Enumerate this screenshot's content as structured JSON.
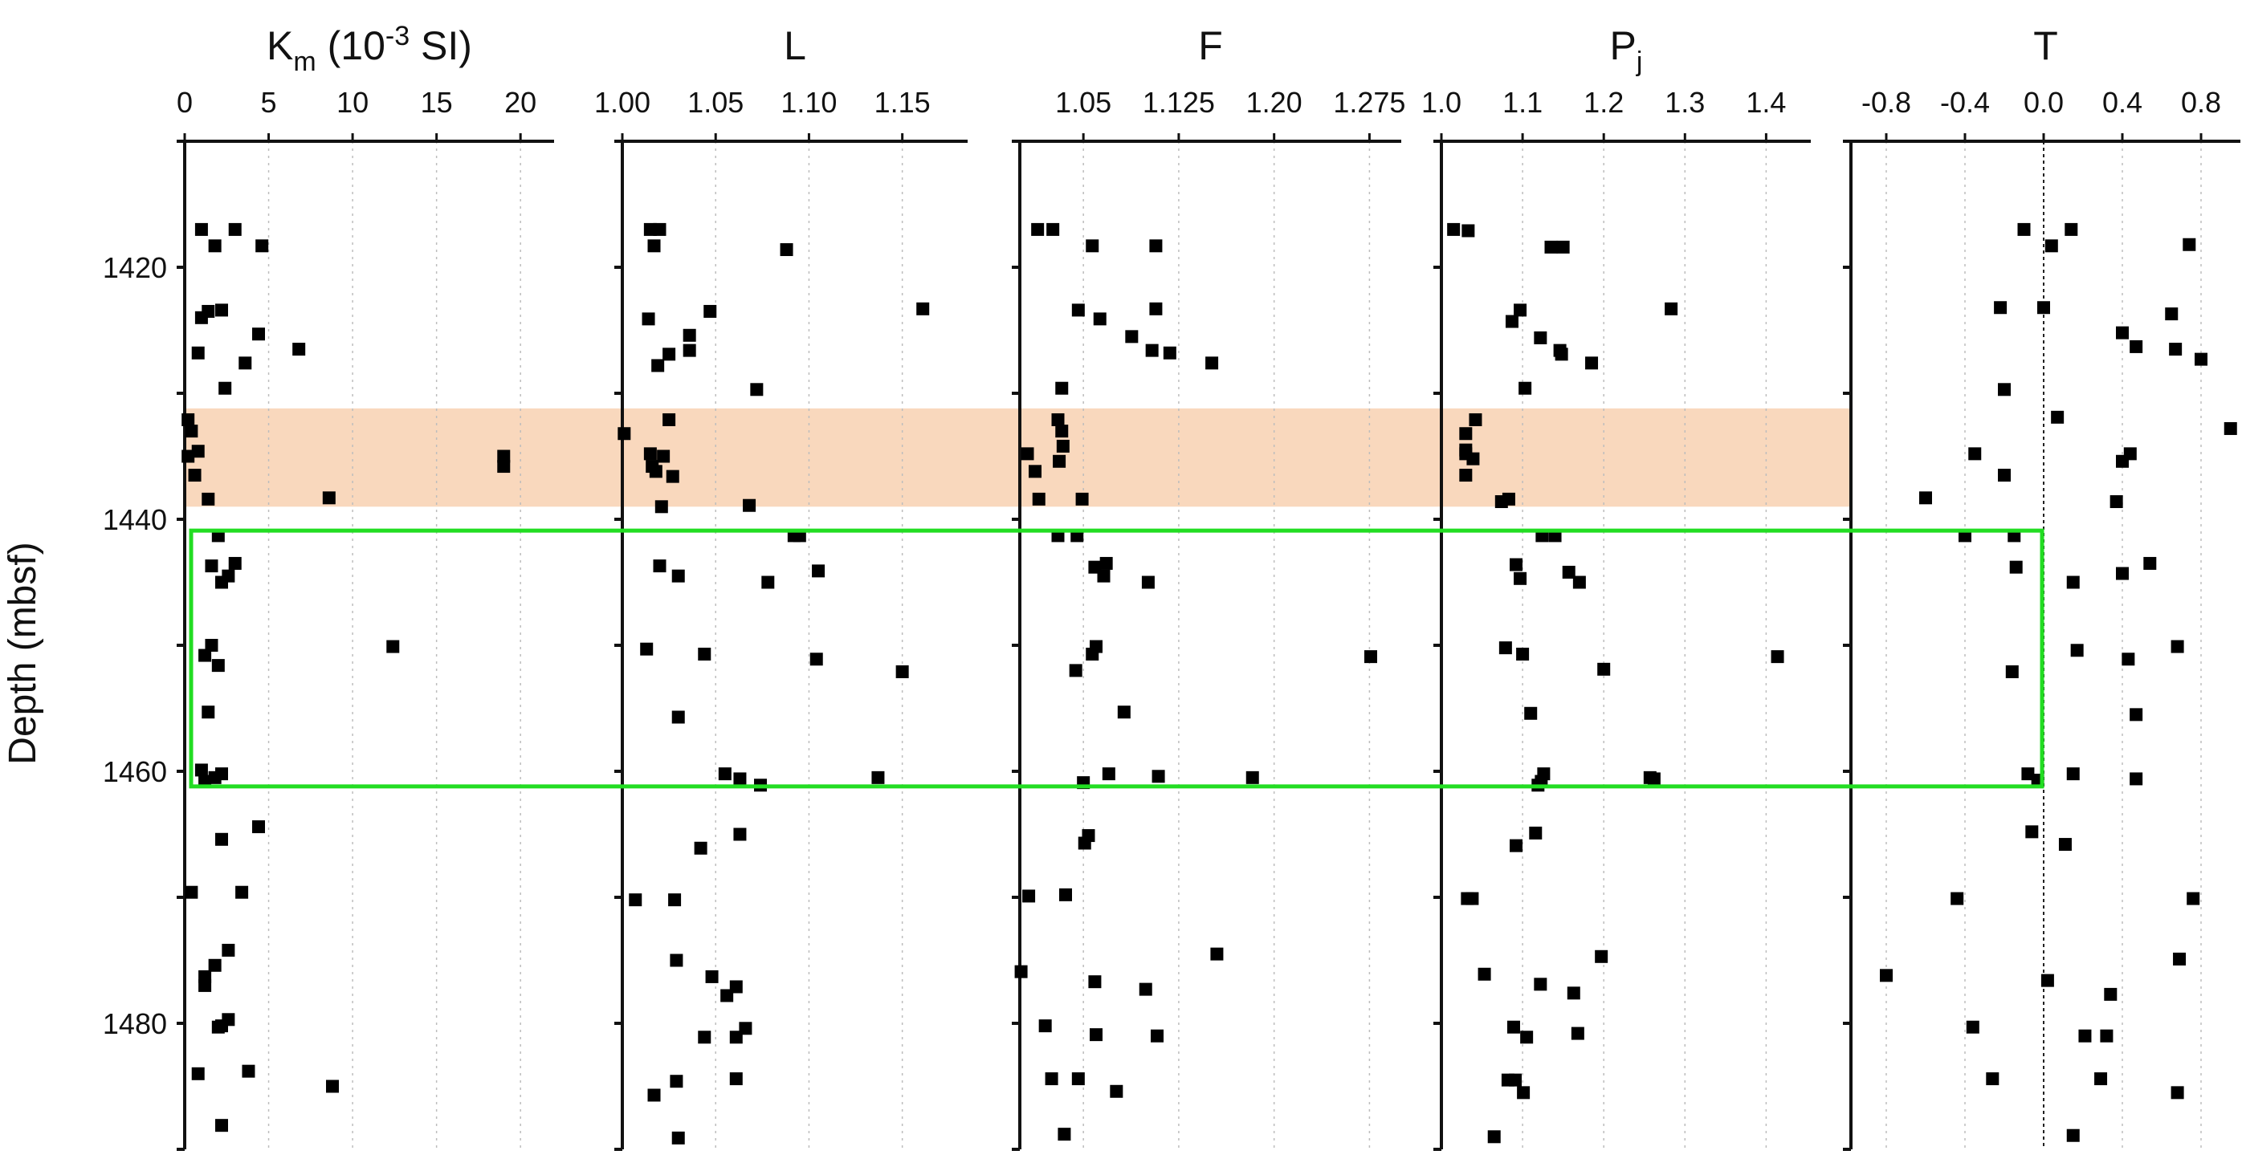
{
  "chart_data": {
    "type": "scatter",
    "y_axis": {
      "label": "Depth (mbsf)",
      "range": [
        1410,
        1490
      ],
      "inverted": true,
      "ticks": [
        1420,
        1440,
        1460,
        1480
      ]
    },
    "highlight_band": {
      "depth_range": [
        1431.2,
        1439.0
      ],
      "color": "#f9d8bd"
    },
    "highlight_box": {
      "depth_range": [
        1440.9,
        1461.2
      ],
      "color": "#22dd22"
    },
    "marker_color": "#000000",
    "panels": [
      {
        "title_main": "K",
        "title_sub": "m",
        "title_rest": " (10",
        "title_sup": "-3",
        "title_end": " SI)",
        "xlim": [
          0,
          22
        ],
        "ticks": [
          0,
          5,
          10,
          15,
          20
        ],
        "tick_labels": [
          "0",
          "5",
          "10",
          "15",
          "20"
        ],
        "gridlines": [
          0,
          5,
          10,
          15,
          20
        ],
        "points": [
          [
            1,
            1417
          ],
          [
            3,
            1417
          ],
          [
            1.8,
            1418.3
          ],
          [
            4.6,
            1418.3
          ],
          [
            1,
            1424
          ],
          [
            2.2,
            1423.4
          ],
          [
            1.4,
            1423.5
          ],
          [
            4.4,
            1425.3
          ],
          [
            6.8,
            1426.5
          ],
          [
            0.8,
            1426.8
          ],
          [
            3.6,
            1427.6
          ],
          [
            2.4,
            1429.6
          ],
          [
            0.2,
            1432.1
          ],
          [
            0.4,
            1433
          ],
          [
            0.8,
            1434.6
          ],
          [
            0.2,
            1435
          ],
          [
            19,
            1435
          ],
          [
            19,
            1435.8
          ],
          [
            0.6,
            1436.5
          ],
          [
            1.4,
            1438.4
          ],
          [
            8.6,
            1438.3
          ],
          [
            2,
            1441.3
          ],
          [
            1.6,
            1443.7
          ],
          [
            3,
            1443.5
          ],
          [
            2.6,
            1444.5
          ],
          [
            2.2,
            1445
          ],
          [
            1.6,
            1450
          ],
          [
            1.2,
            1450.8
          ],
          [
            12.4,
            1450.1
          ],
          [
            2,
            1451.6
          ],
          [
            1.4,
            1455.3
          ],
          [
            1,
            1459.9
          ],
          [
            1.8,
            1460.5
          ],
          [
            2.2,
            1460.2
          ],
          [
            1.2,
            1460.8
          ],
          [
            4.4,
            1464.4
          ],
          [
            2.2,
            1465.4
          ],
          [
            0.4,
            1469.6
          ],
          [
            3.4,
            1469.6
          ],
          [
            2.6,
            1474.2
          ],
          [
            1.8,
            1475.4
          ],
          [
            1.2,
            1476.3
          ],
          [
            1.2,
            1477
          ],
          [
            2.6,
            1479.7
          ],
          [
            2,
            1480.3
          ],
          [
            2.2,
            1480.2
          ],
          [
            0.8,
            1484
          ],
          [
            3.8,
            1483.8
          ],
          [
            8.8,
            1485
          ],
          [
            2.2,
            1488.1
          ]
        ]
      },
      {
        "title_main": "L",
        "xlim": [
          1.0,
          1.185
        ],
        "ticks": [
          1.0,
          1.05,
          1.1,
          1.15
        ],
        "tick_labels": [
          "1.00",
          "1.05",
          "1.10",
          "1.15"
        ],
        "gridlines": [
          1.0,
          1.05,
          1.1,
          1.15
        ],
        "points": [
          [
            1.015,
            1417
          ],
          [
            1.02,
            1417
          ],
          [
            1.017,
            1418.3
          ],
          [
            1.088,
            1418.6
          ],
          [
            1.161,
            1423.3
          ],
          [
            1.047,
            1423.5
          ],
          [
            1.014,
            1424.1
          ],
          [
            1.036,
            1425.4
          ],
          [
            1.036,
            1426.6
          ],
          [
            1.025,
            1426.9
          ],
          [
            1.019,
            1427.8
          ],
          [
            1.072,
            1429.7
          ],
          [
            1.025,
            1432.1
          ],
          [
            1.001,
            1433.2
          ],
          [
            1.015,
            1434.8
          ],
          [
            1.022,
            1435
          ],
          [
            1.016,
            1435.8
          ],
          [
            1.018,
            1436.2
          ],
          [
            1.027,
            1436.6
          ],
          [
            1.021,
            1439
          ],
          [
            1.068,
            1438.9
          ],
          [
            1.092,
            1441.3
          ],
          [
            1.095,
            1441.3
          ],
          [
            1.02,
            1443.7
          ],
          [
            1.03,
            1444.5
          ],
          [
            1.078,
            1445
          ],
          [
            1.105,
            1444.1
          ],
          [
            1.013,
            1450.3
          ],
          [
            1.044,
            1450.7
          ],
          [
            1.104,
            1451.1
          ],
          [
            1.15,
            1452.1
          ],
          [
            1.03,
            1455.7
          ],
          [
            1.055,
            1460.2
          ],
          [
            1.063,
            1460.6
          ],
          [
            1.074,
            1461.1
          ],
          [
            1.137,
            1460.5
          ],
          [
            1.063,
            1465
          ],
          [
            1.042,
            1466.1
          ],
          [
            1.007,
            1470.2
          ],
          [
            1.028,
            1470.2
          ],
          [
            1.029,
            1475
          ],
          [
            1.048,
            1476.3
          ],
          [
            1.061,
            1477.1
          ],
          [
            1.056,
            1477.8
          ],
          [
            1.066,
            1480.4
          ],
          [
            1.044,
            1481.1
          ],
          [
            1.061,
            1481.1
          ],
          [
            1.029,
            1484.6
          ],
          [
            1.061,
            1484.4
          ],
          [
            1.017,
            1485.7
          ],
          [
            1.03,
            1489.1
          ]
        ]
      },
      {
        "title_main": "F",
        "xlim": [
          1.0,
          1.3
        ],
        "ticks": [
          1.05,
          1.125,
          1.2,
          1.275
        ],
        "tick_labels": [
          "1.05",
          "1.125",
          "1.20",
          "1.275"
        ],
        "gridlines": [
          1.05,
          1.125,
          1.2,
          1.275
        ],
        "points": [
          [
            1.014,
            1417
          ],
          [
            1.026,
            1417
          ],
          [
            1.057,
            1418.3
          ],
          [
            1.107,
            1418.3
          ],
          [
            1.046,
            1423.4
          ],
          [
            1.107,
            1423.3
          ],
          [
            1.063,
            1424.1
          ],
          [
            1.088,
            1425.5
          ],
          [
            1.104,
            1426.6
          ],
          [
            1.118,
            1426.8
          ],
          [
            1.151,
            1427.6
          ],
          [
            1.033,
            1429.6
          ],
          [
            1.03,
            1432.1
          ],
          [
            1.033,
            1433
          ],
          [
            1.034,
            1434.2
          ],
          [
            1.006,
            1434.8
          ],
          [
            1.031,
            1435.4
          ],
          [
            1.012,
            1436.2
          ],
          [
            1.015,
            1438.4
          ],
          [
            1.049,
            1438.4
          ],
          [
            1.03,
            1441.3
          ],
          [
            1.045,
            1441.3
          ],
          [
            1.059,
            1443.8
          ],
          [
            1.068,
            1443.5
          ],
          [
            1.066,
            1444.5
          ],
          [
            1.101,
            1445
          ],
          [
            1.06,
            1450.1
          ],
          [
            1.057,
            1450.7
          ],
          [
            1.044,
            1452
          ],
          [
            1.276,
            1450.9
          ],
          [
            1.082,
            1455.3
          ],
          [
            1.07,
            1460.2
          ],
          [
            1.109,
            1460.4
          ],
          [
            1.183,
            1460.5
          ],
          [
            1.05,
            1460.9
          ],
          [
            1.054,
            1465.1
          ],
          [
            1.051,
            1465.7
          ],
          [
            1.007,
            1469.9
          ],
          [
            1.036,
            1469.8
          ],
          [
            1.155,
            1474.5
          ],
          [
            1.059,
            1476.7
          ],
          [
            1.099,
            1477.3
          ],
          [
            1.001,
            1475.9
          ],
          [
            1.02,
            1480.2
          ],
          [
            1.06,
            1480.9
          ],
          [
            1.108,
            1481
          ],
          [
            1.025,
            1484.4
          ],
          [
            1.046,
            1484.4
          ],
          [
            1.076,
            1485.4
          ],
          [
            1.035,
            1488.8
          ]
        ]
      },
      {
        "title_main": "P",
        "title_sub": "j",
        "xlim": [
          1.0,
          1.455
        ],
        "ticks": [
          1.0,
          1.1,
          1.2,
          1.3,
          1.4
        ],
        "tick_labels": [
          "1.0",
          "1.1",
          "1.2",
          "1.3",
          "1.4"
        ],
        "gridlines": [
          1.0,
          1.1,
          1.2,
          1.3,
          1.4
        ],
        "points": [
          [
            1.015,
            1417
          ],
          [
            1.033,
            1417.1
          ],
          [
            1.135,
            1418.4
          ],
          [
            1.15,
            1418.4
          ],
          [
            1.283,
            1423.3
          ],
          [
            1.097,
            1423.4
          ],
          [
            1.087,
            1424.3
          ],
          [
            1.122,
            1425.6
          ],
          [
            1.146,
            1426.6
          ],
          [
            1.148,
            1426.9
          ],
          [
            1.185,
            1427.6
          ],
          [
            1.103,
            1429.6
          ],
          [
            1.042,
            1432.1
          ],
          [
            1.03,
            1433.2
          ],
          [
            1.03,
            1434.5
          ],
          [
            1.03,
            1434.8
          ],
          [
            1.039,
            1435.2
          ],
          [
            1.03,
            1436.5
          ],
          [
            1.074,
            1438.6
          ],
          [
            1.083,
            1438.4
          ],
          [
            1.124,
            1441.3
          ],
          [
            1.14,
            1441.3
          ],
          [
            1.092,
            1443.6
          ],
          [
            1.097,
            1444.7
          ],
          [
            1.157,
            1444.2
          ],
          [
            1.17,
            1445
          ],
          [
            1.079,
            1450.2
          ],
          [
            1.1,
            1450.7
          ],
          [
            1.2,
            1451.9
          ],
          [
            1.414,
            1450.9
          ],
          [
            1.11,
            1455.4
          ],
          [
            1.126,
            1460.2
          ],
          [
            1.257,
            1460.5
          ],
          [
            1.262,
            1460.6
          ],
          [
            1.123,
            1460.8
          ],
          [
            1.119,
            1461.1
          ],
          [
            1.116,
            1464.9
          ],
          [
            1.092,
            1465.9
          ],
          [
            1.038,
            1470.1
          ],
          [
            1.032,
            1470.1
          ],
          [
            1.197,
            1474.7
          ],
          [
            1.053,
            1476.1
          ],
          [
            1.122,
            1476.9
          ],
          [
            1.163,
            1477.6
          ],
          [
            1.089,
            1480.3
          ],
          [
            1.105,
            1481.1
          ],
          [
            1.168,
            1480.8
          ],
          [
            1.082,
            1484.5
          ],
          [
            1.091,
            1484.5
          ],
          [
            1.101,
            1485.5
          ],
          [
            1.065,
            1489
          ]
        ]
      },
      {
        "title_main": "T",
        "xlim": [
          -1.0,
          1.0
        ],
        "ticks": [
          -0.8,
          -0.4,
          0.0,
          0.4,
          0.8
        ],
        "tick_labels": [
          "-0.8",
          "-0.4",
          "0.0",
          "0.4",
          "0.8"
        ],
        "gridlines": [
          -0.8,
          -0.4,
          0.4,
          0.8
        ],
        "zero_line": 0.0,
        "points": [
          [
            -0.1,
            1417
          ],
          [
            0.14,
            1417
          ],
          [
            0.04,
            1418.3
          ],
          [
            0.74,
            1418.2
          ],
          [
            -0.22,
            1423.2
          ],
          [
            0.0,
            1423.2
          ],
          [
            0.65,
            1423.7
          ],
          [
            0.4,
            1425.2
          ],
          [
            0.47,
            1426.3
          ],
          [
            0.67,
            1426.5
          ],
          [
            0.8,
            1427.3
          ],
          [
            -0.2,
            1429.7
          ],
          [
            0.07,
            1431.9
          ],
          [
            0.95,
            1432.8
          ],
          [
            -0.35,
            1434.8
          ],
          [
            0.44,
            1434.8
          ],
          [
            0.4,
            1435.4
          ],
          [
            -0.2,
            1436.5
          ],
          [
            -0.6,
            1438.3
          ],
          [
            0.37,
            1438.6
          ],
          [
            -0.4,
            1441.3
          ],
          [
            -0.15,
            1441.3
          ],
          [
            0.54,
            1443.5
          ],
          [
            0.4,
            1444.3
          ],
          [
            -0.14,
            1443.8
          ],
          [
            0.15,
            1445
          ],
          [
            0.68,
            1450.1
          ],
          [
            0.17,
            1450.4
          ],
          [
            0.43,
            1451.1
          ],
          [
            -0.16,
            1452.1
          ],
          [
            0.47,
            1455.5
          ],
          [
            -0.08,
            1460.2
          ],
          [
            0.15,
            1460.2
          ],
          [
            -0.03,
            1460.7
          ],
          [
            0.47,
            1460.6
          ],
          [
            -0.06,
            1464.8
          ],
          [
            0.11,
            1465.8
          ],
          [
            -0.44,
            1470.1
          ],
          [
            0.76,
            1470.1
          ],
          [
            0.69,
            1474.9
          ],
          [
            -0.8,
            1476.2
          ],
          [
            0.02,
            1476.6
          ],
          [
            0.34,
            1477.7
          ],
          [
            -0.36,
            1480.3
          ],
          [
            0.21,
            1481
          ],
          [
            0.32,
            1481
          ],
          [
            -0.26,
            1484.4
          ],
          [
            0.29,
            1484.4
          ],
          [
            0.68,
            1485.5
          ],
          [
            0.15,
            1488.9
          ]
        ]
      }
    ]
  }
}
